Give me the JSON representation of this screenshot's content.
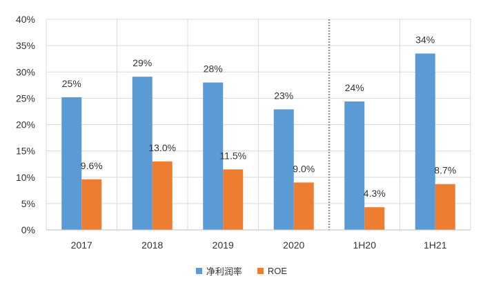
{
  "chart_data": {
    "type": "bar",
    "title": "",
    "xlabel": "",
    "ylabel": "",
    "ylim": [
      0,
      40
    ],
    "y_ticks": [
      "0%",
      "5%",
      "10%",
      "15%",
      "20%",
      "25%",
      "30%",
      "35%",
      "40%"
    ],
    "categories": [
      "2017",
      "2018",
      "2019",
      "2020",
      "1H20",
      "1H21"
    ],
    "grid": true,
    "separator_after_category": "2020",
    "legend_position": "bottom",
    "series": [
      {
        "name": "净利润率",
        "color": "#5B9BD5",
        "values": [
          25.2,
          29.1,
          28.0,
          22.9,
          24.4,
          33.5
        ],
        "labels": [
          "25%",
          "29%",
          "28%",
          "23%",
          "24%",
          "34%"
        ]
      },
      {
        "name": "ROE",
        "color": "#ED7D31",
        "values": [
          9.6,
          13.0,
          11.5,
          9.0,
          4.3,
          8.7
        ],
        "labels": [
          "9.6%",
          "13.0%",
          "11.5%",
          "9.0%",
          "4.3%",
          "8.7%"
        ]
      }
    ]
  }
}
